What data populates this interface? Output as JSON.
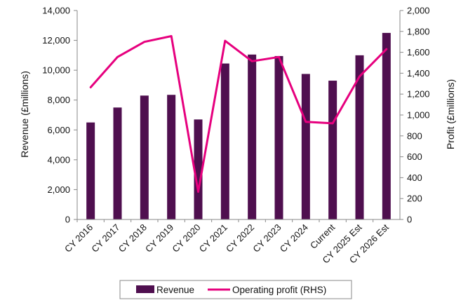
{
  "chart_data": {
    "type": "bar",
    "categories": [
      "CY 2016",
      "CY 2017",
      "CY 2018",
      "CY 2019",
      "CY 2020",
      "CY 2021",
      "CY 2022",
      "CY 2023",
      "CY 2024",
      "Current",
      "CY 2025 Est",
      "CY 2026 Est"
    ],
    "series": [
      {
        "name": "Revenue",
        "type": "bar",
        "axis": "left",
        "color": "#4f0f4f",
        "values": [
          6500,
          7500,
          8300,
          8350,
          6700,
          10450,
          11050,
          10950,
          9750,
          9300,
          11000,
          12500
        ]
      },
      {
        "name": "Operating profit (RHS)",
        "type": "line",
        "axis": "right",
        "color": "#e6007e",
        "values": [
          1265,
          1555,
          1700,
          1755,
          265,
          1710,
          1515,
          1555,
          935,
          920,
          1370,
          1630
        ]
      }
    ],
    "ylabel": "Revenue (£millions)",
    "y2label": "Profit (£millions)",
    "ylim": [
      0,
      14000
    ],
    "y2lim": [
      0,
      2000
    ],
    "yticks": [
      "0",
      "2,000",
      "4,000",
      "6,000",
      "8,000",
      "10,000",
      "12,000",
      "14,000"
    ],
    "y2ticks": [
      "0",
      "200",
      "400",
      "600",
      "800",
      "1,000",
      "1,200",
      "1,400",
      "1,600",
      "1,800",
      "2,000"
    ],
    "grid": false,
    "legend_position": "bottom"
  }
}
